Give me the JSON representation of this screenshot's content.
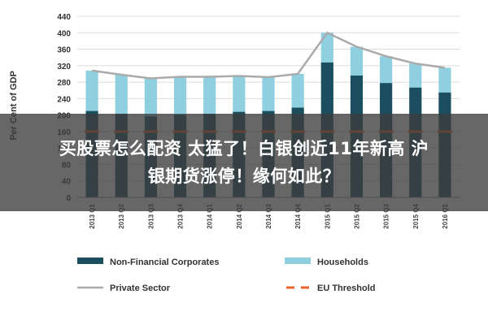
{
  "chart_data": {
    "type": "bar",
    "stacked": true,
    "ylabel": "Per Cent of GDP",
    "ylim": [
      0,
      440
    ],
    "yticks": [
      0,
      40,
      80,
      120,
      160,
      200,
      240,
      280,
      320,
      360,
      400,
      440
    ],
    "grid": true,
    "legend_position": "bottom",
    "categories": [
      "2013 Q1",
      "2013 Q2",
      "2013 Q3",
      "2013 Q4",
      "2014 Q1",
      "2014 Q2",
      "2014 Q3",
      "2014 Q4",
      "2015 Q1",
      "2015 Q2",
      "2015 Q3",
      "2015 Q4",
      "2016 Q1"
    ],
    "series": [
      {
        "name": "Non-Financial Corporates",
        "kind": "bar",
        "color": "#1b4f5f",
        "values": [
          210,
          203,
          197,
          201,
          203,
          208,
          210,
          218,
          328,
          296,
          278,
          267,
          255
        ]
      },
      {
        "name": "Households",
        "kind": "bar",
        "color": "#8ecfe0",
        "values": [
          98,
          95,
          92,
          92,
          90,
          87,
          82,
          82,
          72,
          70,
          65,
          58,
          60
        ]
      },
      {
        "name": "Private Sector",
        "kind": "line",
        "color": "#aaaaaa",
        "values": [
          308,
          298,
          289,
          293,
          293,
          295,
          292,
          300,
          400,
          366,
          343,
          325,
          315
        ]
      },
      {
        "name": "EU Threshold",
        "kind": "dashed-line",
        "color": "#e8622a",
        "values": [
          160,
          160,
          160,
          160,
          160,
          160,
          160,
          160,
          160,
          160,
          160,
          160,
          160
        ]
      }
    ]
  },
  "overlay": {
    "line1": "买股票怎么配资 太猛了！白银创近11年新高 沪",
    "line2": "银期货涨停！缘何如此？"
  }
}
